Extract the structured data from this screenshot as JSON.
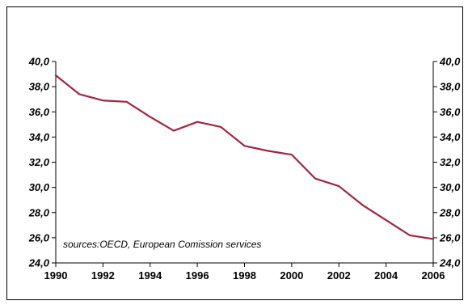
{
  "chart_data": {
    "type": "line",
    "title": "",
    "xlabel": "",
    "ylabel": "",
    "x": [
      1990,
      1991,
      1992,
      1993,
      1994,
      1995,
      1996,
      1997,
      1998,
      1999,
      2000,
      2001,
      2002,
      2003,
      2004,
      2005,
      2006
    ],
    "series": [
      {
        "values": [
          38.9,
          37.4,
          36.9,
          36.8,
          35.6,
          34.5,
          35.2,
          34.8,
          33.3,
          32.9,
          32.6,
          30.7,
          30.1,
          28.6,
          27.4,
          26.2,
          25.9
        ],
        "color": "#a0263f"
      }
    ],
    "ylim": [
      24.0,
      40.0
    ],
    "xlim": [
      1990,
      2006
    ],
    "y_ticks": [
      "24,0",
      "26,0",
      "28,0",
      "30,0",
      "32,0",
      "34,0",
      "36,0",
      "38,0",
      "40,0"
    ],
    "x_ticks": [
      "1990",
      "1992",
      "1994",
      "1996",
      "1998",
      "2000",
      "2002",
      "2004",
      "2006"
    ],
    "y_axis_sides": [
      "left",
      "right"
    ],
    "grid": false,
    "legend": "none",
    "annotation": "sources:OECD, European Comission services"
  }
}
